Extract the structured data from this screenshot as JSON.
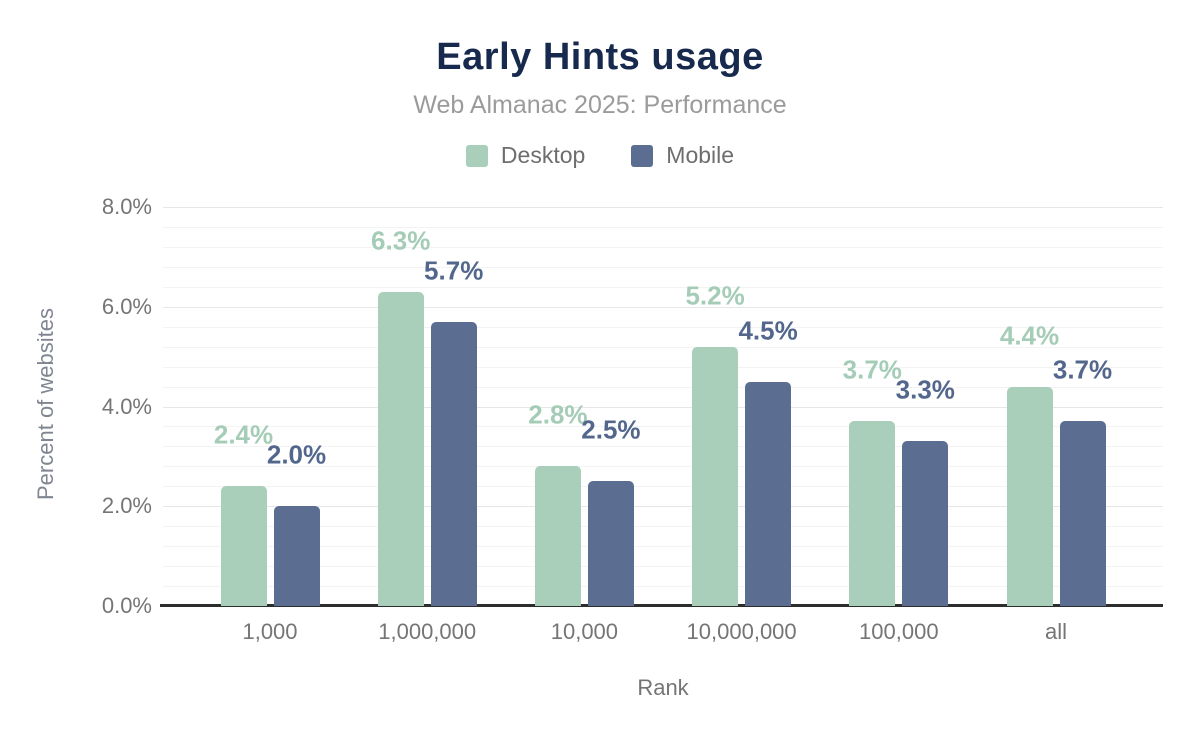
{
  "header": {
    "title": "Early Hints usage",
    "subtitle": "Web Almanac 2025: Performance"
  },
  "chart_data": {
    "type": "bar",
    "title": "Early Hints usage",
    "subtitle": "Web Almanac 2025: Performance",
    "xlabel": "Rank",
    "ylabel": "Percent of websites",
    "ylim": [
      0,
      8
    ],
    "yticks": [
      {
        "value": 0,
        "label": "0.0%"
      },
      {
        "value": 2,
        "label": "2.0%"
      },
      {
        "value": 4,
        "label": "4.0%"
      },
      {
        "value": 6,
        "label": "6.0%"
      },
      {
        "value": 8,
        "label": "8.0%"
      }
    ],
    "grid": {
      "on": true,
      "minor_step": 0.4,
      "major_step": 2
    },
    "legend_position": "top",
    "categories": [
      "1,000",
      "1,000,000",
      "10,000",
      "10,000,000",
      "100,000",
      "all"
    ],
    "series": [
      {
        "name": "Desktop",
        "color": "#a9cfbb",
        "label_color": "#a4ccb7",
        "values": [
          2.4,
          6.3,
          2.8,
          5.2,
          3.7,
          4.4
        ],
        "labels": [
          "2.4%",
          "6.3%",
          "2.8%",
          "5.2%",
          "3.7%",
          "4.4%"
        ]
      },
      {
        "name": "Mobile",
        "color": "#5b6e91",
        "label_color": "#53678d",
        "values": [
          2.0,
          5.7,
          2.5,
          4.5,
          3.3,
          3.7
        ],
        "labels": [
          "2.0%",
          "5.7%",
          "2.5%",
          "4.5%",
          "3.3%",
          "3.7%"
        ]
      }
    ],
    "colors": {
      "title": "#17294d",
      "subtitle": "#9b9b9b",
      "tick_text": "#757575",
      "axis_line": "#2d2d2d",
      "grid_minor": "#f3f3f3",
      "grid_major": "#e7e7e7"
    }
  }
}
